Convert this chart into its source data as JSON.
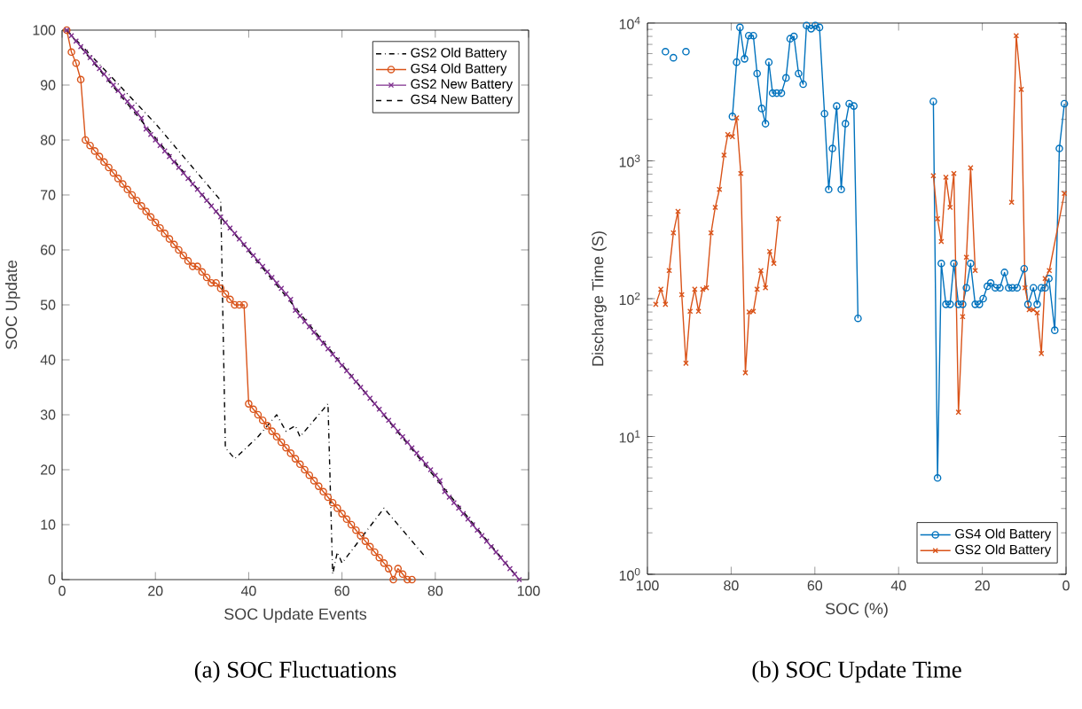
{
  "chart_data": [
    {
      "type": "line",
      "title": "(a) SOC Fluctuations",
      "xlabel": "SOC Update Events",
      "ylabel": "SOC Update",
      "xlim": [
        0,
        100
      ],
      "ylim": [
        0,
        100
      ],
      "xticks": [
        0,
        20,
        40,
        60,
        80,
        100
      ],
      "yticks": [
        0,
        10,
        20,
        30,
        40,
        50,
        60,
        70,
        80,
        90,
        100
      ],
      "legend": "top right",
      "grid": false,
      "series": [
        {
          "name": "GS2 Old Battery",
          "color": "#000000",
          "marker": "none",
          "line_style": "dashdot",
          "x": [
            1,
            10,
            20,
            34,
            35,
            37,
            42,
            46,
            48,
            50,
            51,
            57,
            58,
            59,
            60,
            69,
            78
          ],
          "values": [
            100,
            92,
            83,
            69,
            24,
            22,
            26,
            30,
            27,
            28,
            26,
            32,
            1,
            5,
            3,
            13,
            4
          ]
        },
        {
          "name": "GS4 Old Battery",
          "color": "#d95319",
          "marker": "circle",
          "line_style": "solid",
          "x": [
            1,
            2,
            3,
            4,
            5,
            6,
            7,
            8,
            9,
            10,
            11,
            12,
            13,
            14,
            15,
            16,
            17,
            18,
            19,
            20,
            21,
            22,
            23,
            24,
            25,
            26,
            27,
            28,
            29,
            30,
            31,
            32,
            33,
            34,
            35,
            36,
            37,
            38,
            39,
            40,
            41,
            42,
            43,
            44,
            45,
            46,
            47,
            48,
            49,
            50,
            51,
            52,
            53,
            54,
            55,
            56,
            57,
            58,
            59,
            60,
            61,
            62,
            63,
            64,
            65,
            66,
            67,
            68,
            69,
            70,
            71,
            72,
            73,
            74,
            75
          ],
          "values": [
            100,
            96,
            94,
            91,
            80,
            79,
            78,
            77,
            76,
            75,
            74,
            73,
            72,
            71,
            70,
            69,
            68,
            67,
            66,
            65,
            64,
            63,
            62,
            61,
            60,
            59,
            58,
            57,
            57,
            56,
            55,
            54,
            54,
            53,
            52,
            51,
            50,
            50,
            50,
            32,
            31,
            30,
            29,
            28,
            27,
            26,
            25,
            24,
            23,
            22,
            21,
            20,
            19,
            18,
            17,
            16,
            15,
            14,
            13,
            12,
            11,
            10,
            9,
            8,
            7,
            6,
            5,
            4,
            3,
            2,
            0,
            2,
            1,
            0,
            0
          ]
        },
        {
          "name": "GS2 New Battery",
          "color": "#7e2f8e",
          "marker": "cross",
          "line_style": "solid",
          "x": [
            1,
            2,
            3,
            4,
            5,
            6,
            7,
            8,
            9,
            10,
            11,
            12,
            13,
            14,
            15,
            16,
            17,
            18,
            19,
            20,
            21,
            22,
            23,
            24,
            25,
            26,
            27,
            28,
            29,
            30,
            31,
            32,
            33,
            34,
            35,
            36,
            37,
            38,
            39,
            40,
            41,
            42,
            43,
            44,
            45,
            46,
            47,
            48,
            49,
            50,
            51,
            52,
            53,
            54,
            55,
            56,
            57,
            58,
            59,
            60,
            61,
            62,
            63,
            64,
            65,
            66,
            67,
            68,
            69,
            70,
            71,
            72,
            73,
            74,
            75,
            76,
            77,
            78,
            79,
            80,
            81,
            82,
            83,
            84,
            85,
            86,
            87,
            88,
            89,
            90,
            91,
            92,
            93,
            94,
            95,
            96,
            97,
            98
          ],
          "values": [
            100,
            99,
            98,
            97,
            96,
            95,
            94,
            93,
            92,
            91,
            90,
            89,
            88,
            87,
            86,
            85,
            84,
            82,
            81,
            80,
            79,
            78,
            77,
            76,
            75,
            74,
            73,
            72,
            71,
            70,
            69,
            68,
            67,
            66,
            65,
            64,
            63,
            62,
            61,
            60,
            59,
            58,
            57,
            56,
            55,
            54,
            53,
            52,
            51,
            49,
            48,
            47,
            46,
            45,
            44,
            43,
            42,
            41,
            40,
            39,
            38,
            37,
            36,
            35,
            34,
            33,
            32,
            31,
            30,
            29,
            28,
            27,
            26,
            25,
            24,
            23,
            22,
            21,
            20,
            19,
            18,
            16,
            15,
            14,
            13,
            12,
            11,
            10,
            9,
            8,
            7,
            6,
            5,
            4,
            3,
            2,
            1,
            0
          ]
        },
        {
          "name": "GS4 New Battery",
          "color": "#000000",
          "marker": "none",
          "line_style": "dashed",
          "x": [
            1,
            98
          ],
          "values": [
            100,
            0
          ]
        }
      ]
    },
    {
      "type": "line",
      "title": "(b) SOC Update Time",
      "xlabel": "SOC (%)",
      "ylabel": "Discharge Time (S)",
      "xlim": [
        100,
        0
      ],
      "ylim": [
        1,
        10000
      ],
      "log": "y",
      "xticks": [
        100,
        80,
        60,
        40,
        20,
        0
      ],
      "yticks": [
        {
          "value": 1,
          "label": "10$^{0}$"
        },
        {
          "value": 10,
          "label": "10$^{1}$"
        },
        {
          "value": 100,
          "label": "10$^{2}$"
        },
        {
          "value": 1000,
          "label": "10$^{3}$"
        },
        {
          "value": 10000,
          "label": "10$^{4}$"
        }
      ],
      "legend": "bottom right",
      "grid": false,
      "series": [
        {
          "name": "GS4 Old Battery",
          "color": "#0072bd",
          "marker": "circle",
          "line_style": "solid",
          "x": [
            95.7,
            94.7,
            93.8,
            92.3,
            90.8,
            85,
            79.7,
            78.7,
            77.9,
            76.8,
            75.8,
            74.7,
            73.8,
            72.7,
            71.8,
            71,
            70.1,
            69.1,
            68,
            66.9,
            65.9,
            65,
            63.9,
            62.8,
            62,
            60.9,
            59.9,
            58.9,
            57.7,
            56.7,
            55.8,
            54.8,
            53.7,
            52.7,
            51.8,
            50.7,
            49.7,
            40,
            31.7,
            30.7,
            29.8,
            28.7,
            27.7,
            26.8,
            25.7,
            24.7,
            23.8,
            22.8,
            21.7,
            20.7,
            19.8,
            18.8,
            18,
            16.9,
            15.8,
            14.7,
            13.7,
            12.8,
            11.7,
            10,
            9.1,
            7.8,
            6.9,
            5.9,
            5,
            4.1,
            2.7,
            1.6,
            0.4
          ],
          "values": [
            6200,
            null,
            5600,
            null,
            6200,
            null,
            2100,
            5200,
            9300,
            5500,
            8100,
            8100,
            4300,
            2400,
            1860,
            5200,
            3100,
            3100,
            3100,
            4000,
            7700,
            8000,
            4300,
            3600,
            9600,
            9100,
            9600,
            9300,
            2200,
            620,
            1230,
            2500,
            620,
            1860,
            2600,
            2500,
            72,
            null,
            2700,
            5,
            180,
            91,
            91,
            180,
            91,
            91,
            120,
            180,
            91,
            91,
            100,
            123,
            130,
            120,
            120,
            155,
            120,
            120,
            120,
            165,
            91,
            120,
            91,
            120,
            120,
            140,
            59,
            1230,
            2600
          ]
        },
        {
          "name": "GS2 Old Battery",
          "color": "#d95319",
          "marker": "cross",
          "line_style": "solid",
          "x": [
            98,
            96.8,
            95.7,
            94.8,
            93.8,
            92.7,
            91.8,
            90.8,
            89.8,
            88.7,
            87.8,
            86.8,
            85.9,
            84.8,
            83.8,
            82.8,
            81.7,
            80.8,
            79.7,
            78.7,
            77.7,
            76.6,
            75.7,
            74.7,
            73.8,
            72.9,
            71.8,
            70.8,
            69.8,
            68.7,
            50,
            31.7,
            30.7,
            29.8,
            28.7,
            27.7,
            26.8,
            25.7,
            24.7,
            23.8,
            22.8,
            21.7,
            17,
            13,
            11.9,
            10.7,
            9.8,
            8.8,
            7.8,
            6.9,
            5.9,
            5,
            4,
            0.4
          ],
          "values": [
            91,
            117,
            91,
            160,
            300,
            430,
            107,
            34,
            81,
            117,
            81,
            117,
            120,
            300,
            460,
            620,
            1100,
            1550,
            1500,
            2050,
            810,
            29,
            80,
            81,
            117,
            160,
            120,
            220,
            180,
            380,
            null,
            780,
            380,
            260,
            760,
            460,
            810,
            15,
            74,
            200,
            890,
            160,
            null,
            500,
            8100,
            3300,
            120,
            83,
            83,
            79,
            40,
            140,
            160,
            580
          ]
        }
      ]
    }
  ]
}
